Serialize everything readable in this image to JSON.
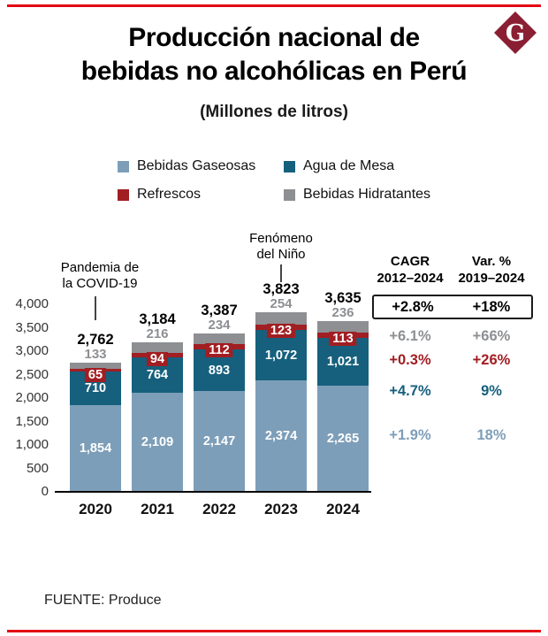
{
  "page": {
    "title_line1": "Producción nacional de",
    "title_line2": "bebidas no alcohólicas en Perú",
    "subtitle": "(Millones de litros)",
    "source": "FUENTE: Produce",
    "logo_letter": "G"
  },
  "colors": {
    "accent_red": "#e30613",
    "logo_maroon": "#8a1e33",
    "gaseosas": "#7d9eb9",
    "agua": "#16607d",
    "refrescos": "#a11e22",
    "hidratantes": "#8d8f92"
  },
  "legend": [
    {
      "label": "Bebidas Gaseosas",
      "color": "#7d9eb9"
    },
    {
      "label": "Agua de Mesa",
      "color": "#16607d"
    },
    {
      "label": "Refrescos",
      "color": "#a11e22"
    },
    {
      "label": "Bebidas Hidratantes",
      "color": "#8d8f92"
    }
  ],
  "annotations": [
    {
      "lines": [
        "Pandemia de",
        "la COVID-19"
      ],
      "target_year": "2020"
    },
    {
      "lines": [
        "Fenómeno",
        "del Niño"
      ],
      "target_year": "2023"
    }
  ],
  "chart_data": {
    "type": "bar",
    "stacked": true,
    "title": "Producción nacional de bebidas no alcohólicas en Perú",
    "units": "Millones de litros",
    "categories": [
      "2020",
      "2021",
      "2022",
      "2023",
      "2024"
    ],
    "series": [
      {
        "name": "Bebidas Gaseosas",
        "color": "#7d9eb9",
        "values": [
          1854,
          2109,
          2147,
          2374,
          2265
        ]
      },
      {
        "name": "Agua de Mesa",
        "color": "#16607d",
        "values": [
          710,
          764,
          893,
          1072,
          1021
        ]
      },
      {
        "name": "Refrescos",
        "color": "#a11e22",
        "values": [
          65,
          94,
          112,
          123,
          113
        ]
      },
      {
        "name": "Bebidas Hidratantes",
        "color": "#8d8f92",
        "values": [
          133,
          216,
          234,
          254,
          236
        ]
      }
    ],
    "totals": [
      2762,
      3184,
      3387,
      3823,
      3635
    ],
    "ylim": [
      0,
      4000
    ],
    "ytick_step": 500,
    "yticks": [
      "4,000",
      "3,500",
      "3,000",
      "2,500",
      "2,000",
      "1,500",
      "1,000",
      "500",
      "0"
    ],
    "grid": false,
    "legend_position": "top"
  },
  "stats": {
    "col1_header_line1": "CAGR",
    "col1_header_line2": "2012–2024",
    "col2_header_line1": "Var. %",
    "col2_header_line2": "2019–2024",
    "rows": [
      {
        "cagr": "+2.8%",
        "var": "+18%",
        "color": "#000000",
        "boxed": true
      },
      {
        "cagr": "+6.1%",
        "var": "+66%",
        "color": "#8d8f92",
        "boxed": false
      },
      {
        "cagr": "+0.3%",
        "var": "+26%",
        "color": "#a11e22",
        "boxed": false
      },
      {
        "cagr": "+4.7%",
        "var": "9%",
        "color": "#16607d",
        "boxed": false
      },
      {
        "cagr": "+1.9%",
        "var": "18%",
        "color": "#7d9eb9",
        "boxed": false
      }
    ]
  }
}
